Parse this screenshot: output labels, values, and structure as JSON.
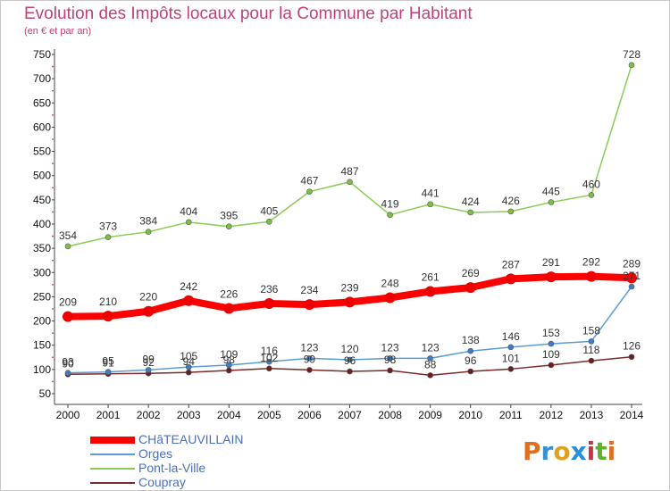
{
  "title": "Evolution des Impôts locaux pour la Commune par Habitant",
  "subtitle": "(en € et par an)",
  "logo": {
    "text": "Proxiti",
    "colors": [
      "#e07020",
      "#3a8fd0",
      "#e0a020",
      "#2a8fd8",
      "#d03040",
      "#60b030",
      "#e07020"
    ]
  },
  "chart_data": {
    "type": "line",
    "x": [
      2000,
      2001,
      2002,
      2003,
      2004,
      2005,
      2006,
      2007,
      2008,
      2009,
      2010,
      2011,
      2012,
      2013,
      2014
    ],
    "ylim": [
      50,
      750
    ],
    "yticks": [
      50,
      100,
      150,
      200,
      250,
      300,
      350,
      400,
      450,
      500,
      550,
      600,
      650,
      700,
      750
    ],
    "grid": false,
    "legend_position": "bottom-left",
    "series": [
      {
        "name": "Pont-la-Ville",
        "color": "#88cc55",
        "marker": "#7bc043",
        "values": [
          354,
          373,
          384,
          404,
          395,
          405,
          467,
          487,
          419,
          441,
          424,
          426,
          445,
          460,
          728
        ],
        "labels": [
          "354",
          "373",
          "384",
          "404",
          "395",
          "405",
          "467",
          "487",
          "419",
          "441",
          "424",
          "426",
          "445",
          "460",
          "728"
        ]
      },
      {
        "name": "Coupray",
        "color": "#7a2a2a",
        "marker": "#6b1e1e",
        "values": [
          90,
          91,
          92,
          94,
          98,
          102,
          99,
          96,
          98,
          88,
          96,
          101,
          109,
          118,
          126
        ],
        "labels": [
          "90",
          "91",
          "92",
          "94",
          "98",
          "102",
          "99",
          "96",
          "98",
          "88",
          "96",
          "101",
          "109",
          "118",
          "126"
        ]
      },
      {
        "name": "Orges",
        "color": "#5b9bd5",
        "marker": "#3a7fc8",
        "values": [
          93,
          95,
          99,
          105,
          109,
          116,
          123,
          120,
          123,
          123,
          138,
          146,
          153,
          158,
          271
        ],
        "labels": [
          "93",
          "95",
          "99",
          "105",
          "109",
          "116",
          "123",
          "120",
          "123",
          "123",
          "138",
          "146",
          "153",
          "158",
          "271"
        ]
      },
      {
        "name": "CHâTEAUVILLAIN",
        "color": "#ff0000",
        "marker": "#ee0000",
        "values": [
          209,
          210,
          220,
          242,
          226,
          236,
          234,
          239,
          248,
          261,
          269,
          287,
          291,
          292,
          289
        ],
        "labels": [
          "209",
          "210",
          "220",
          "242",
          "226",
          "236",
          "234",
          "239",
          "248",
          "261",
          "269",
          "287",
          "291",
          "292",
          "289"
        ]
      }
    ],
    "legend": [
      {
        "name": "CHâTEAUVILLAIN",
        "color": "#ff0000"
      },
      {
        "name": "Orges",
        "color": "#5b9bd5"
      },
      {
        "name": "Pont-la-Ville",
        "color": "#88cc55"
      },
      {
        "name": "Coupray",
        "color": "#7a2a2a"
      }
    ]
  }
}
